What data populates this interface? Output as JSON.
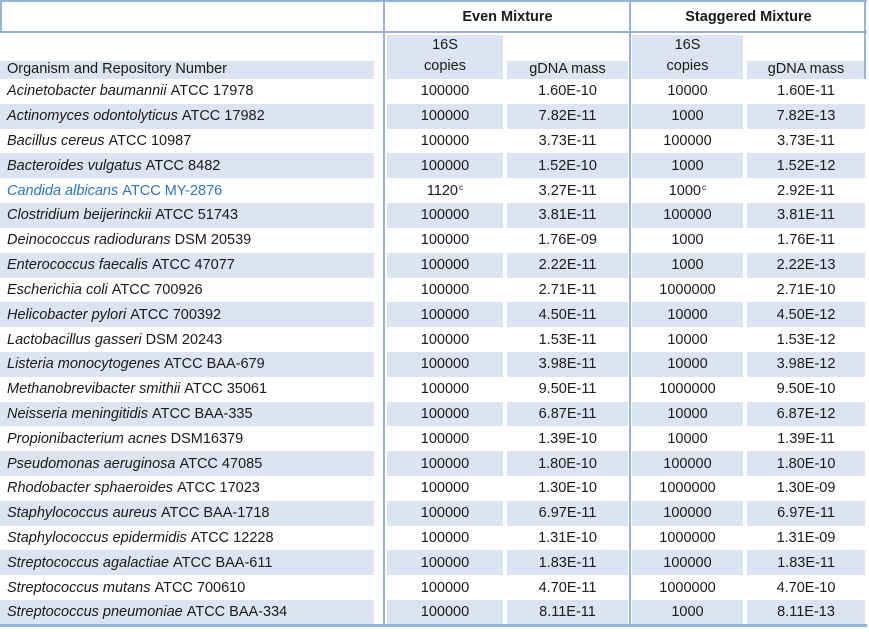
{
  "colors": {
    "stripe_blue": "#dbe5f1",
    "border_blue": "#95b3d7",
    "text": "#1a1a1a",
    "highlight_blue": "#2e75b6"
  },
  "table": {
    "groups": [
      {
        "label": "Even Mixture"
      },
      {
        "label": "Staggered Mixture"
      }
    ],
    "organism_header": "Organism and Repository Number",
    "copies_header_line1": "16S",
    "copies_header_line2": "copies",
    "gdna_header": "gDNA mass",
    "rows": [
      {
        "organism_italic": "Acinetobacter baumannii",
        "repository": "ATCC 17978",
        "even_copies": "100000",
        "even_gdna_mass": "1.60E-10",
        "staggered_copies": "10000",
        "staggered_gdna_mass": "1.60E-11"
      },
      {
        "organism_italic": "Actinomyces odontolyticus",
        "repository": "ATCC 17982",
        "even_copies": "100000",
        "even_gdna_mass": "7.82E-11",
        "staggered_copies": "1000",
        "staggered_gdna_mass": "7.82E-13"
      },
      {
        "organism_italic": "Bacillus cereus",
        "repository": "ATCC 10987",
        "even_copies": "100000",
        "even_gdna_mass": "3.73E-11",
        "staggered_copies": "100000",
        "staggered_gdna_mass": "3.73E-11"
      },
      {
        "organism_italic": "Bacteroides vulgatus",
        "repository": "ATCC 8482",
        "even_copies": "100000",
        "even_gdna_mass": "1.52E-10",
        "staggered_copies": "1000",
        "staggered_gdna_mass": "1.52E-12"
      },
      {
        "organism_italic": "Candida albicans",
        "repository": "ATCC MY-2876",
        "even_copies": "1120",
        "even_copies_sup": "c",
        "even_gdna_mass": "3.27E-11",
        "staggered_copies": "1000",
        "staggered_copies_sup": "c",
        "staggered_gdna_mass": "2.92E-11",
        "highlight": true
      },
      {
        "organism_italic": "Clostridium beijerinckii",
        "repository": "ATCC 51743",
        "even_copies": "100000",
        "even_gdna_mass": "3.81E-11",
        "staggered_copies": "100000",
        "staggered_gdna_mass": "3.81E-11"
      },
      {
        "organism_italic": "Deinococcus radiodurans",
        "repository": "DSM 20539",
        "even_copies": "100000",
        "even_gdna_mass": "1.76E-09",
        "staggered_copies": "1000",
        "staggered_gdna_mass": "1.76E-11"
      },
      {
        "organism_italic": "Enterococcus faecalis",
        "repository": "ATCC 47077",
        "even_copies": "100000",
        "even_gdna_mass": "2.22E-11",
        "staggered_copies": "1000",
        "staggered_gdna_mass": "2.22E-13"
      },
      {
        "organism_italic": "Escherichia coli",
        "repository": "ATCC 700926",
        "even_copies": "100000",
        "even_gdna_mass": "2.71E-11",
        "staggered_copies": "1000000",
        "staggered_gdna_mass": "2.71E-10"
      },
      {
        "organism_italic": "Helicobacter pylori",
        "repository": "ATCC 700392",
        "even_copies": "100000",
        "even_gdna_mass": "4.50E-11",
        "staggered_copies": "10000",
        "staggered_gdna_mass": "4.50E-12"
      },
      {
        "organism_italic": "Lactobacillus gasseri",
        "repository": "DSM 20243",
        "even_copies": "100000",
        "even_gdna_mass": "1.53E-11",
        "staggered_copies": "10000",
        "staggered_gdna_mass": "1.53E-12"
      },
      {
        "organism_italic": "Listeria monocytogenes",
        "repository": "ATCC BAA-679",
        "even_copies": "100000",
        "even_gdna_mass": "3.98E-11",
        "staggered_copies": "10000",
        "staggered_gdna_mass": "3.98E-12"
      },
      {
        "organism_italic": "Methanobrevibacter smithii",
        "repository": "ATCC 35061",
        "even_copies": "100000",
        "even_gdna_mass": "9.50E-11",
        "staggered_copies": "1000000",
        "staggered_gdna_mass": "9.50E-10"
      },
      {
        "organism_italic": "Neisseria meningitidis",
        "repository": "ATCC BAA-335",
        "even_copies": "100000",
        "even_gdna_mass": "6.87E-11",
        "staggered_copies": "10000",
        "staggered_gdna_mass": "6.87E-12"
      },
      {
        "organism_italic": "Propionibacterium acnes",
        "repository": "DSM16379",
        "even_copies": "100000",
        "even_gdna_mass": "1.39E-10",
        "staggered_copies": "10000",
        "staggered_gdna_mass": "1.39E-11"
      },
      {
        "organism_italic": "Pseudomonas aeruginosa",
        "repository": "ATCC 47085",
        "even_copies": "100000",
        "even_gdna_mass": "1.80E-10",
        "staggered_copies": "100000",
        "staggered_gdna_mass": "1.80E-10"
      },
      {
        "organism_italic": "Rhodobacter sphaeroides",
        "repository": "ATCC 17023",
        "even_copies": "100000",
        "even_gdna_mass": "1.30E-10",
        "staggered_copies": "1000000",
        "staggered_gdna_mass": "1.30E-09"
      },
      {
        "organism_italic": "Staphylococcus aureus",
        "repository": "ATCC BAA-1718",
        "even_copies": "100000",
        "even_gdna_mass": "6.97E-11",
        "staggered_copies": "100000",
        "staggered_gdna_mass": "6.97E-11"
      },
      {
        "organism_italic": "Staphylococcus epidermidis",
        "repository": "ATCC 12228",
        "even_copies": "100000",
        "even_gdna_mass": "1.31E-10",
        "staggered_copies": "1000000",
        "staggered_gdna_mass": "1.31E-09"
      },
      {
        "organism_italic": "Streptococcus agalactiae",
        "repository": "ATCC BAA-611",
        "even_copies": "100000",
        "even_gdna_mass": "1.83E-11",
        "staggered_copies": "100000",
        "staggered_gdna_mass": "1.83E-11"
      },
      {
        "organism_italic": "Streptococcus mutans",
        "repository": "ATCC 700610",
        "even_copies": "100000",
        "even_gdna_mass": "4.70E-11",
        "staggered_copies": "1000000",
        "staggered_gdna_mass": "4.70E-10"
      },
      {
        "organism_italic": "Streptococcus pneumoniae",
        "repository": "ATCC BAA-334",
        "even_copies": "100000",
        "even_gdna_mass": "8.11E-11",
        "staggered_copies": "1000",
        "staggered_gdna_mass": "8.11E-13"
      }
    ]
  }
}
